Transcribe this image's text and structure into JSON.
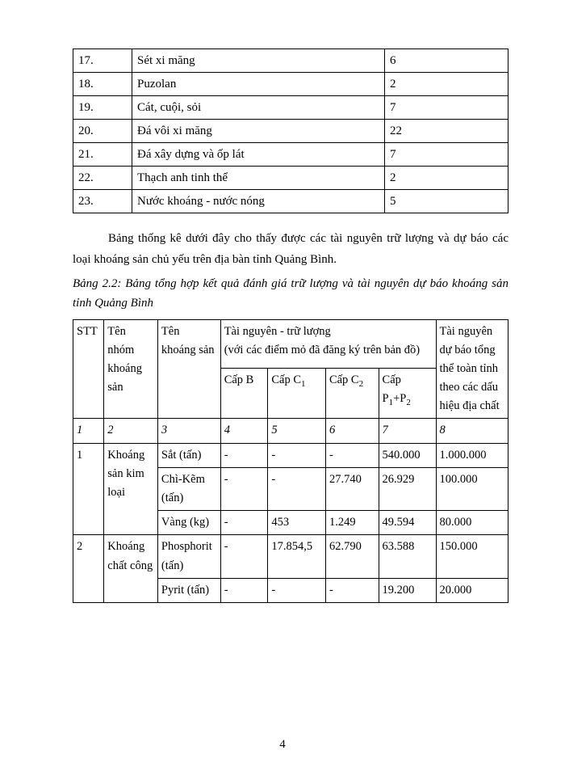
{
  "table1": {
    "rows": [
      {
        "num": "17.",
        "name": "Sét xi măng",
        "val": "6"
      },
      {
        "num": "18.",
        "name": "Puzolan",
        "val": "2"
      },
      {
        "num": "19.",
        "name": "Cát, cuội, sỏi",
        "val": "7"
      },
      {
        "num": "20.",
        "name": "Đá vôi xi măng",
        "val": "22"
      },
      {
        "num": "21.",
        "name": "Đá xây dựng và ốp lát",
        "val": "7"
      },
      {
        "num": "22.",
        "name": "Thạch anh tinh thể",
        "val": "2"
      },
      {
        "num": "23.",
        "name": "Nước khoáng - nước nóng",
        "val": "5"
      }
    ]
  },
  "paragraph": "Bảng thống kê dưới đây cho thấy được các tài nguyên trữ lượng và dự báo các loại khoáng sản chủ yếu trên địa bàn tỉnh Quảng Bình.",
  "caption": "Bảng 2.2: Bảng tổng hợp kết quả đánh giá trữ lượng và tài nguyên dự báo khoáng sản tỉnh Quảng Bình",
  "table2": {
    "head": {
      "stt": "STT",
      "nhom": "Tên nhóm khoáng sản",
      "khoang": "Tên khoáng sản",
      "tai_nguyen_header": "Tài nguyên - trữ lượng",
      "tai_nguyen_sub": "(với các điểm mỏ đã đăng ký trên bản đồ)",
      "capB": "Cấp B",
      "capC1": "Cấp C",
      "capC2": "Cấp C",
      "capP": "Cấp P",
      "capP_suffix": "+P",
      "tn": "Tài nguyên dự báo tổng thể toàn tỉnh theo các dấu hiệu địa chất"
    },
    "cols_idx": [
      "1",
      "2",
      "3",
      "4",
      "5",
      "6",
      "7",
      "8"
    ],
    "groups": [
      {
        "stt": "1",
        "nhom": "Khoáng sản kim loại",
        "items": [
          {
            "khoang": "Sắt (tấn)",
            "capB": "-",
            "capC1": "-",
            "capC2": "-",
            "capP": "540.000",
            "tn": "1.000.000"
          },
          {
            "khoang": "Chì-Kẽm (tấn)",
            "capB": "-",
            "capC1": "-",
            "capC2": "27.740",
            "capP": "26.929",
            "tn": "100.000"
          },
          {
            "khoang": "Vàng (kg)",
            "capB": "-",
            "capC1": "453",
            "capC2": "1.249",
            "capP": "49.594",
            "tn": "80.000"
          }
        ]
      },
      {
        "stt": "2",
        "nhom": "Khoáng chất công",
        "items": [
          {
            "khoang": "Phosphorit (tấn)",
            "capB": "-",
            "capC1": "17.854,5",
            "capC2": "62.790",
            "capP": "63.588",
            "tn": "150.000"
          },
          {
            "khoang": "Pyrit (tấn)",
            "capB": "-",
            "capC1": "-",
            "capC2": "-",
            "capP": "19.200",
            "tn": "20.000"
          }
        ]
      }
    ]
  },
  "page_number": "4"
}
